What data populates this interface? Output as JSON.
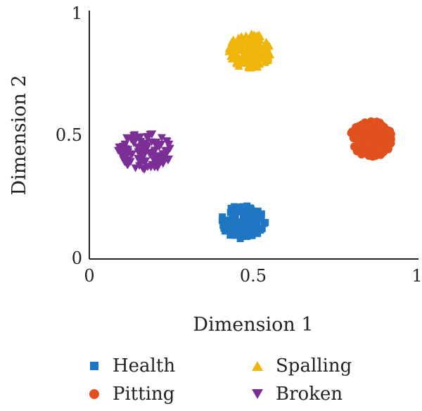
{
  "chart_data": {
    "type": "scatter",
    "xlabel": "Dimension 1",
    "ylabel": "Dimension 2",
    "xlim": [
      0,
      1
    ],
    "ylim": [
      0,
      1
    ],
    "xticks": [
      "0",
      "0.5",
      "1"
    ],
    "yticks": [
      "0",
      "0.5",
      "1"
    ],
    "grid": false,
    "legend_placement": "bottom",
    "series": [
      {
        "name": "Health",
        "color": "#1f77c4",
        "marker": "square",
        "center": [
          0.47,
          0.15
        ],
        "spread": [
          0.135,
          0.14
        ],
        "count": 120
      },
      {
        "name": "Pitting",
        "color": "#e0511e",
        "marker": "circle",
        "center": [
          0.86,
          0.49
        ],
        "spread": [
          0.13,
          0.145
        ],
        "count": 140
      },
      {
        "name": "Spalling",
        "color": "#efb50a",
        "marker": "triangle-up",
        "center": [
          0.49,
          0.85
        ],
        "spread": [
          0.13,
          0.15
        ],
        "count": 150
      },
      {
        "name": "Broken",
        "color": "#7b2f96",
        "marker": "triangle-down",
        "center": [
          0.17,
          0.44
        ],
        "spread": [
          0.165,
          0.15
        ],
        "count": 130
      }
    ]
  },
  "legend": [
    {
      "label": "Health",
      "color": "#1f77c4",
      "marker": "square"
    },
    {
      "label": "Spalling",
      "color": "#efb50a",
      "marker": "triangle-up"
    },
    {
      "label": "Pitting",
      "color": "#e0511e",
      "marker": "circle"
    },
    {
      "label": "Broken",
      "color": "#7b2f96",
      "marker": "triangle-down"
    }
  ]
}
